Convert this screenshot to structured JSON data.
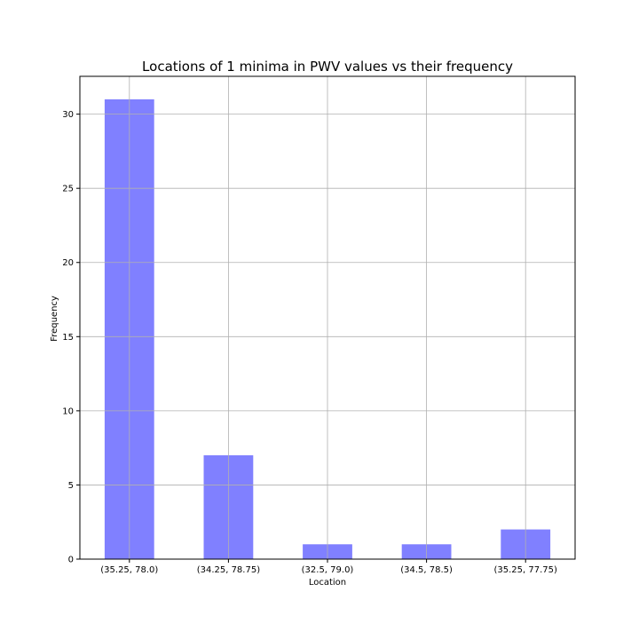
{
  "chart_data": {
    "type": "bar",
    "title": "Locations of 1 minima in PWV values vs their frequency",
    "xlabel": "Location",
    "ylabel": "Frequency",
    "categories": [
      "(35.25, 78.0)",
      "(34.25, 78.75)",
      "(32.5, 79.0)",
      "(34.5, 78.5)",
      "(35.25, 77.75)"
    ],
    "values": [
      31,
      7,
      1,
      1,
      2
    ],
    "ylim": [
      0,
      32.55
    ],
    "yticks": [
      0,
      5,
      10,
      15,
      20,
      25,
      30
    ],
    "grid": true,
    "bar_color": "#8080ff",
    "grid_color": "#b0b0b0"
  }
}
